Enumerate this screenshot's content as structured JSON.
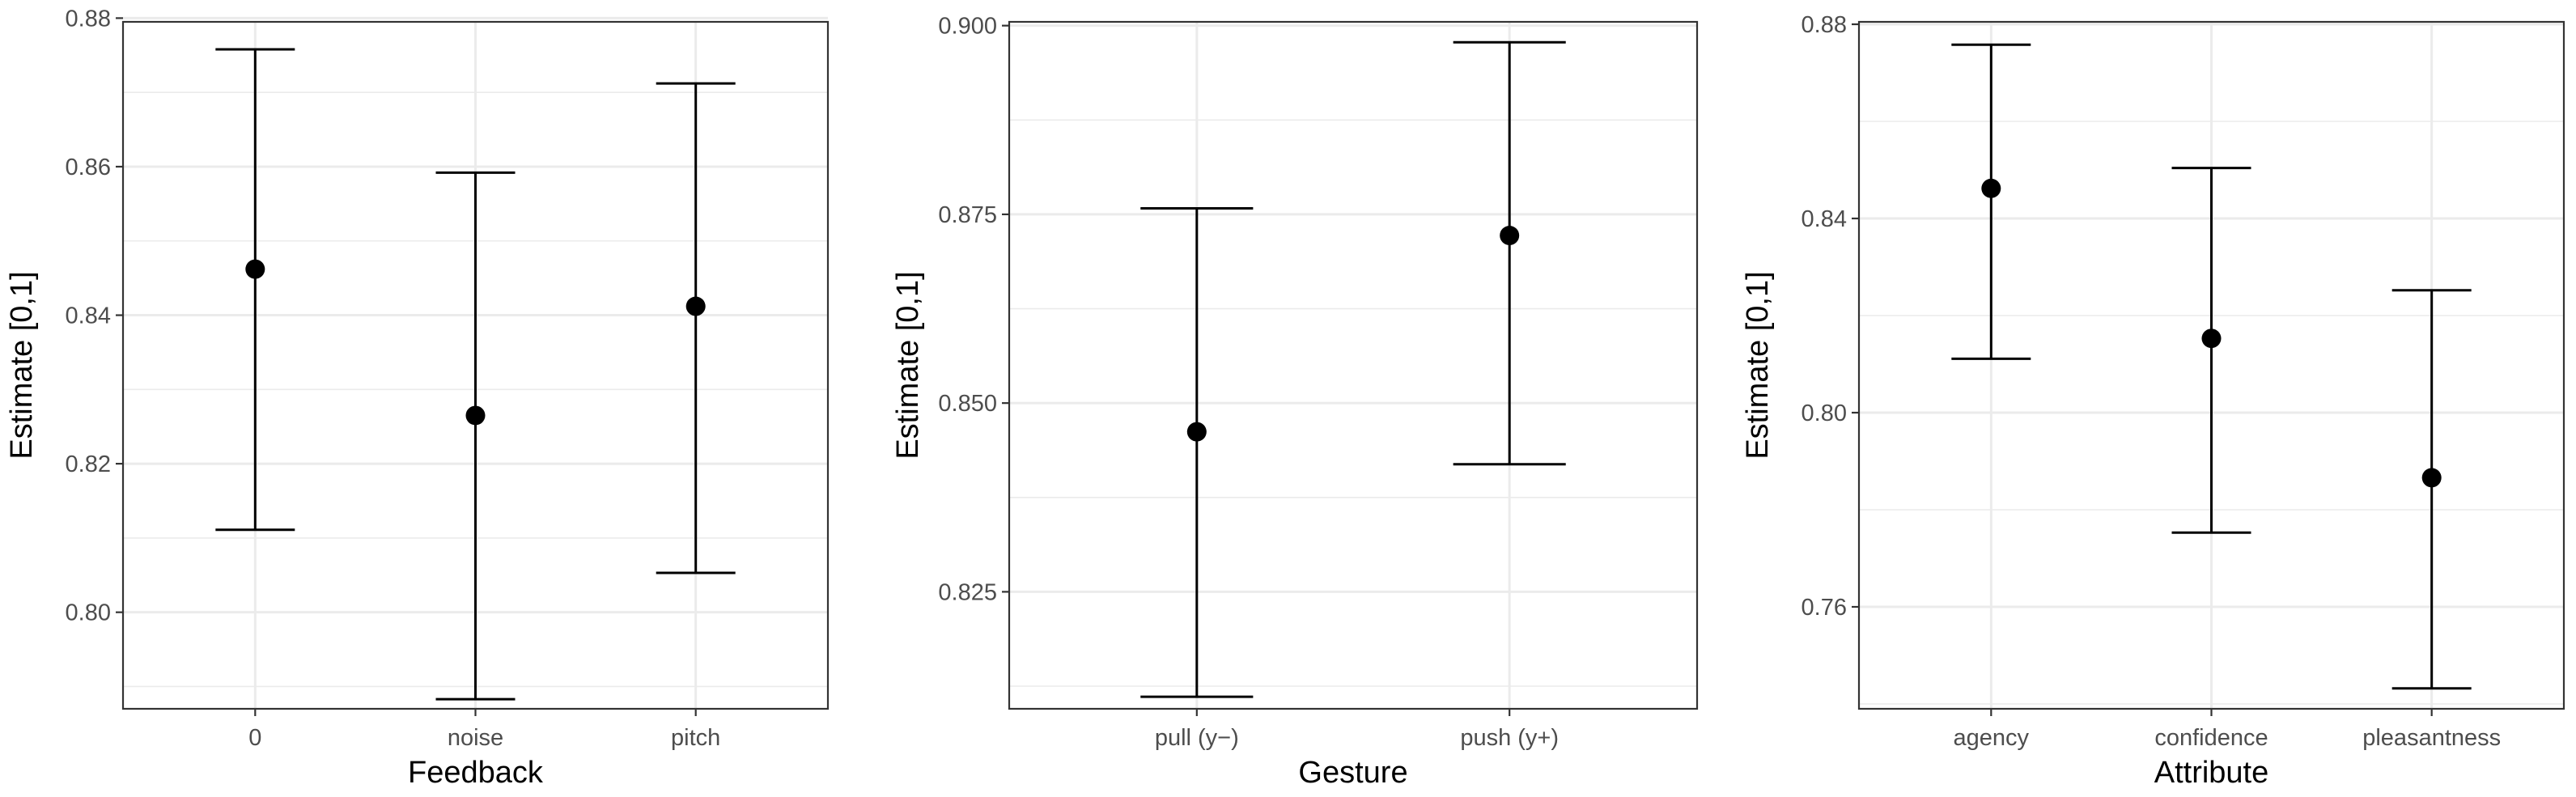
{
  "chart_data": [
    {
      "type": "errorbar",
      "xlabel": "Feedback",
      "ylabel": "Estimate [0,1]",
      "categories": [
        "0",
        "noise",
        "pitch"
      ],
      "values": [
        0.8462,
        0.8265,
        0.8412
      ],
      "lower": [
        0.8111,
        0.7883,
        0.8053
      ],
      "upper": [
        0.8758,
        0.8592,
        0.8712
      ],
      "ylim": [
        0.787,
        0.8795
      ],
      "yticks": [
        0.8,
        0.82,
        0.84,
        0.86,
        0.88
      ],
      "ytick_labels": [
        "0.80",
        "0.82",
        "0.84",
        "0.86",
        "0.88"
      ],
      "grid": true
    },
    {
      "type": "errorbar",
      "xlabel": "Gesture",
      "ylabel": "Estimate [0,1]",
      "categories": [
        "pull (y−)",
        "push (y+)"
      ],
      "values": [
        0.8462,
        0.8722
      ],
      "lower": [
        0.8111,
        0.8419
      ],
      "upper": [
        0.8758,
        0.8978
      ],
      "ylim": [
        0.8095,
        0.9005
      ],
      "yticks": [
        0.825,
        0.85,
        0.875,
        0.9
      ],
      "ytick_labels": [
        "0.825",
        "0.850",
        "0.875",
        "0.900"
      ],
      "grid": true
    },
    {
      "type": "errorbar",
      "xlabel": "Attribute",
      "ylabel": "Estimate [0,1]",
      "categories": [
        "agency",
        "confidence",
        "pleasantness"
      ],
      "values": [
        0.8462,
        0.8153,
        0.7866
      ],
      "lower": [
        0.8111,
        0.7753,
        0.7432
      ],
      "upper": [
        0.8758,
        0.8504,
        0.8252
      ],
      "ylim": [
        0.739,
        0.8805
      ],
      "yticks": [
        0.76,
        0.8,
        0.84,
        0.88
      ],
      "ytick_labels": [
        "0.76",
        "0.80",
        "0.84",
        "0.88"
      ],
      "grid": true
    }
  ]
}
